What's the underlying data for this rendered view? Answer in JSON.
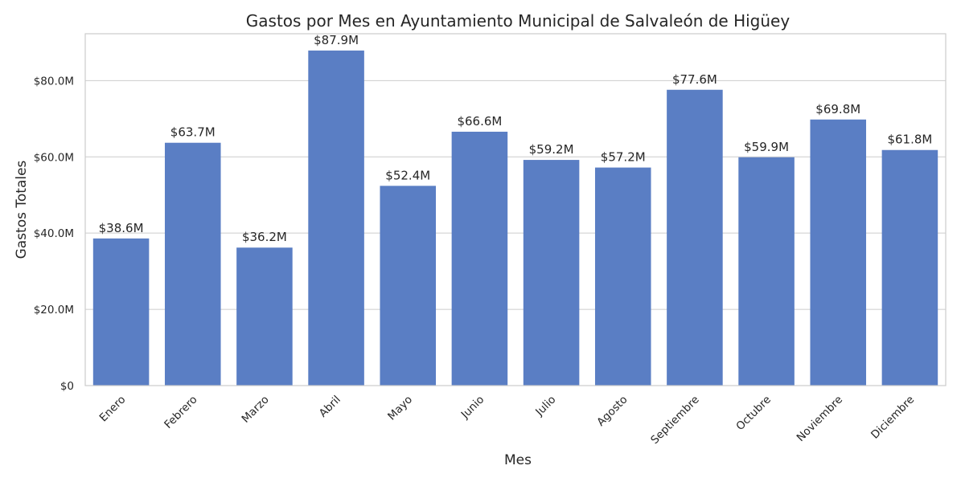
{
  "chart_data": {
    "type": "bar",
    "title": "Gastos por Mes en Ayuntamiento Municipal de Salvaleón de Higüey",
    "xlabel": "Mes",
    "ylabel": "Gastos Totales",
    "categories": [
      "Enero",
      "Febrero",
      "Marzo",
      "Abril",
      "Mayo",
      "Junio",
      "Julio",
      "Agosto",
      "Septiembre",
      "Octubre",
      "Noviembre",
      "Diciembre"
    ],
    "values": [
      38.6,
      63.7,
      36.2,
      87.9,
      52.4,
      66.6,
      59.2,
      57.2,
      77.6,
      59.9,
      69.8,
      61.8
    ],
    "value_labels": [
      "$38.6M",
      "$63.7M",
      "$36.2M",
      "$87.9M",
      "$52.4M",
      "$66.6M",
      "$59.2M",
      "$57.2M",
      "$77.6M",
      "$59.9M",
      "$69.8M",
      "$61.8M"
    ],
    "unit": "millions USD",
    "ylim": [
      0,
      92.3
    ],
    "yticks": [
      0,
      20,
      40,
      60,
      80
    ],
    "ytick_labels": [
      "$0",
      "$20.0M",
      "$40.0M",
      "$60.0M",
      "$80.0M"
    ],
    "grid": "horizontal",
    "bar_color": "#5a7ec4",
    "gridline_color": "#cccccc",
    "text_color": "#262626"
  }
}
